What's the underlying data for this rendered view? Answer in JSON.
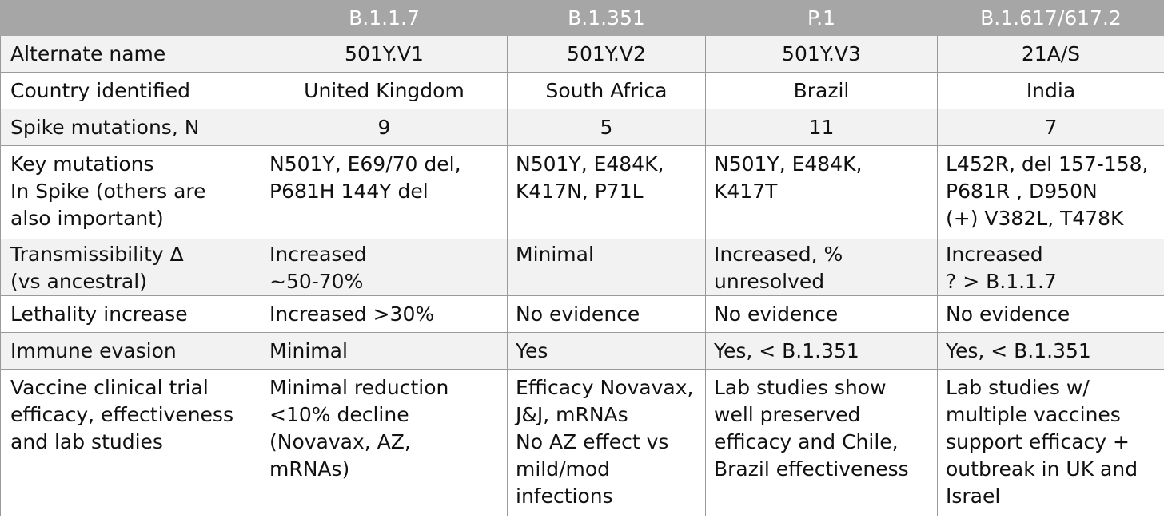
{
  "header": [
    "",
    "B.1.1.7",
    "B.1.351",
    "P.1",
    "B.1.617/617.2"
  ],
  "rows": [
    {
      "label": "Alternate name",
      "cells": [
        "501Y.V1",
        "501Y.V2",
        "501Y.V3",
        "21A/S"
      ]
    },
    {
      "label": "Country identified",
      "cells": [
        "United Kingdom",
        "South Africa",
        "Brazil",
        "India"
      ]
    },
    {
      "label": "Spike mutations, N",
      "cells": [
        "9",
        "5",
        "11",
        "7"
      ]
    },
    {
      "label": "Key mutations\nIn Spike (others are\nalso important)",
      "cells": [
        "N501Y, E69/70 del,\nP681H 144Y del",
        "N501Y, E484K,\nK417N, P71L",
        "N501Y, E484K,\nK417T",
        "L452R, del 157-158,\nP681R , D950N\n(+) V382L, T478K"
      ]
    },
    {
      "label": "Transmissibility Δ\n(vs ancestral)",
      "cells": [
        "Increased\n~50-70%",
        "Minimal",
        "Increased, %\nunresolved",
        "Increased\n? > B.1.1.7"
      ]
    },
    {
      "label": "Lethality increase",
      "cells": [
        "Increased >30%",
        "No evidence",
        "No evidence",
        "No evidence"
      ]
    },
    {
      "label": "Immune evasion",
      "cells": [
        "Minimal",
        "Yes",
        "Yes, < B.1.351",
        "Yes, < B.1.351"
      ]
    },
    {
      "label": "Vaccine clinical trial\nefficacy, effectiveness\nand lab studies",
      "cells": [
        "Minimal reduction\n<10% decline\n(Novavax, AZ,\nmRNAs)",
        "Efficacy Novavax,\nJ&J, mRNAs\nNo AZ effect vs\nmild/mod\ninfections",
        "Lab studies show\nwell preserved\nefficacy and Chile,\nBrazil effectiveness",
        "Lab studies w/\nmultiple vaccines\nsupport efficacy +\noutbreak in UK and\nIsrael"
      ]
    }
  ]
}
